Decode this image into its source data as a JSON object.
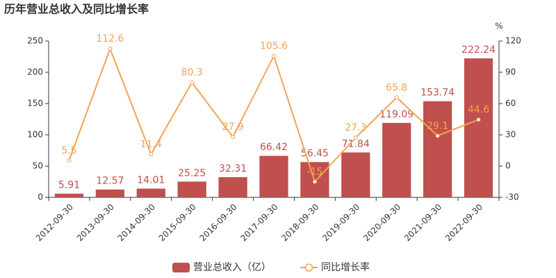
{
  "chart_data": {
    "type": "bar",
    "title": "历年营业总收入及同比增长率",
    "categories": [
      "2012-09-30",
      "2013-09-30",
      "2014-09-30",
      "2015-09-30",
      "2016-09-30",
      "2017-09-30",
      "2018-09-30",
      "2019-09-30",
      "2020-09-30",
      "2021-09-30",
      "2022-09-30"
    ],
    "series": [
      {
        "name": "营业总收入（亿）",
        "type": "bar",
        "color": "#c0504d",
        "values": [
          5.91,
          12.57,
          14.01,
          25.25,
          32.31,
          66.42,
          56.45,
          71.84,
          119.09,
          153.74,
          222.24
        ]
      },
      {
        "name": "同比增长率",
        "type": "line",
        "axis": "y2",
        "color": "#f3a354",
        "values": [
          5.5,
          112.6,
          11.4,
          80.3,
          27.9,
          105.6,
          -15,
          27.3,
          65.8,
          29.1,
          44.6
        ]
      }
    ],
    "y2label": "%",
    "ylim": [
      0,
      250
    ],
    "yticks": [
      0,
      50,
      100,
      150,
      200,
      250
    ],
    "y2lim": [
      -30,
      120
    ],
    "y2ticks": [
      -30,
      0,
      30,
      60,
      90,
      120
    ],
    "grid": false
  }
}
